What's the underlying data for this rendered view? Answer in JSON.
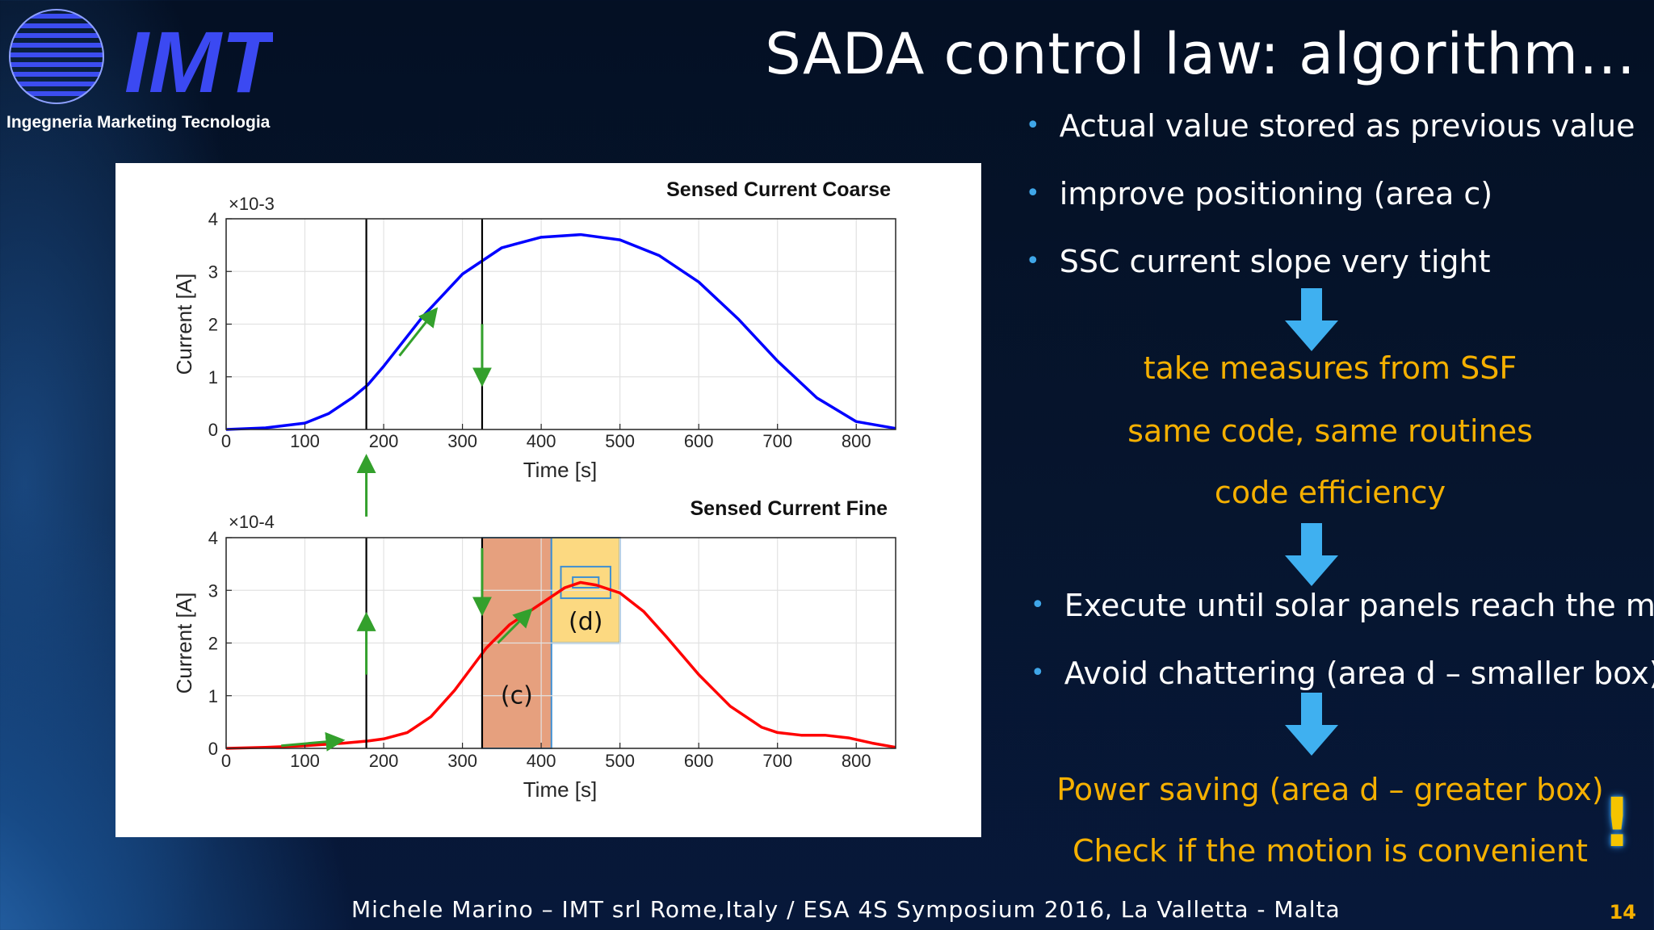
{
  "logo": {
    "name": "IMT",
    "subtitle": "Ingegneria Marketing Tecnologia"
  },
  "slide": {
    "title": "SADA control law: algorithm…",
    "page_number": "14",
    "footer": "Michele Marino – IMT srl Rome,Italy / ESA 4S Symposium 2016, La Valletta - Malta"
  },
  "bullets_top": [
    "Actual value stored as previous value",
    "improve positioning (area c)",
    "SSC current slope very tight"
  ],
  "result_1": [
    "take measures from SSF",
    "same code, same routines",
    "code efficiency"
  ],
  "bullets_mid": [
    "Execute until solar panels reach the max",
    "Avoid chattering (area d – smaller box)"
  ],
  "result_2": [
    "Power saving (area d – greater box)",
    "Check if the motion is convenient"
  ],
  "exclamation": "!",
  "colors": {
    "accent_blue": "#3fa6e8",
    "accent_orange": "#f5b000",
    "coarse_line": "#0000ff",
    "fine_line": "#ff0000",
    "area_c": "#e6a07e",
    "area_d": "#fcd981",
    "guide_arrows": "#33a02c"
  },
  "chart_data": [
    {
      "type": "line",
      "title": "Sensed Current Coarse",
      "xlabel": "Time [s]",
      "ylabel": "Current [A]",
      "y_exponent": "×10-3",
      "xlim": [
        0,
        850
      ],
      "ylim": [
        0,
        4
      ],
      "xticks": [
        "0",
        "100",
        "200",
        "300",
        "400",
        "500",
        "600",
        "700",
        "800"
      ],
      "yticks": [
        "0",
        "1",
        "2",
        "3",
        "4"
      ],
      "grid": true,
      "series": [
        {
          "x": [
            0,
            50,
            100,
            130,
            160,
            180,
            200,
            250,
            300,
            350,
            400,
            450,
            500,
            550,
            600,
            650,
            700,
            750,
            800,
            850
          ],
          "values": [
            0,
            0.03,
            0.12,
            0.3,
            0.6,
            0.85,
            1.2,
            2.15,
            2.95,
            3.45,
            3.65,
            3.7,
            3.6,
            3.3,
            2.8,
            2.1,
            1.3,
            0.6,
            0.15,
            0.02
          ]
        }
      ],
      "vlines_x": [
        178,
        325
      ],
      "annotations": {
        "slope_arrow": [
          [
            220,
            1.4
          ],
          [
            265,
            2.25
          ]
        ],
        "down_arrow": [
          [
            325,
            2.0
          ],
          [
            325,
            0.9
          ]
        ]
      }
    },
    {
      "type": "line",
      "title": "Sensed Current Fine",
      "xlabel": "Time [s]",
      "ylabel": "Current [A]",
      "y_exponent": "×10-4",
      "xlim": [
        0,
        850
      ],
      "ylim": [
        0,
        4
      ],
      "xticks": [
        "0",
        "100",
        "200",
        "300",
        "400",
        "500",
        "600",
        "700",
        "800"
      ],
      "yticks": [
        "0",
        "1",
        "2",
        "3",
        "4"
      ],
      "grid": true,
      "series": [
        {
          "x": [
            0,
            50,
            100,
            150,
            180,
            200,
            230,
            260,
            290,
            310,
            330,
            360,
            400,
            430,
            450,
            470,
            500,
            530,
            560,
            600,
            640,
            680,
            700,
            730,
            760,
            790,
            820,
            850
          ],
          "values": [
            0,
            0.02,
            0.05,
            0.1,
            0.14,
            0.18,
            0.3,
            0.6,
            1.1,
            1.5,
            1.9,
            2.35,
            2.75,
            3.05,
            3.15,
            3.1,
            2.95,
            2.6,
            2.1,
            1.4,
            0.8,
            0.4,
            0.3,
            0.25,
            0.25,
            0.2,
            0.1,
            0.02
          ]
        }
      ],
      "vlines_x": [
        178,
        325
      ],
      "areas": [
        {
          "label": "(c)",
          "x": [
            325,
            413
          ],
          "y": [
            0,
            4
          ]
        },
        {
          "label": "(d)",
          "x": [
            413,
            500
          ],
          "y": [
            2,
            4
          ]
        }
      ],
      "inner_boxes": [
        {
          "x": [
            425,
            488
          ],
          "y": [
            2.85,
            3.45
          ]
        },
        {
          "x": [
            440,
            473
          ],
          "y": [
            3.05,
            3.25
          ]
        }
      ],
      "annotations": {
        "up_arrow_mid": [
          [
            178,
            1.4
          ],
          [
            178,
            2.5
          ]
        ],
        "down_arrow": [
          [
            325,
            3.8
          ],
          [
            325,
            2.6
          ]
        ],
        "slope_arrow": [
          [
            345,
            2.0
          ],
          [
            385,
            2.6
          ]
        ],
        "flat_arrow": [
          [
            70,
            0.05
          ],
          [
            145,
            0.15
          ]
        ],
        "up_arrow_between": [
          [
            178,
            4.4
          ],
          [
            178,
            5.5
          ]
        ]
      }
    }
  ]
}
